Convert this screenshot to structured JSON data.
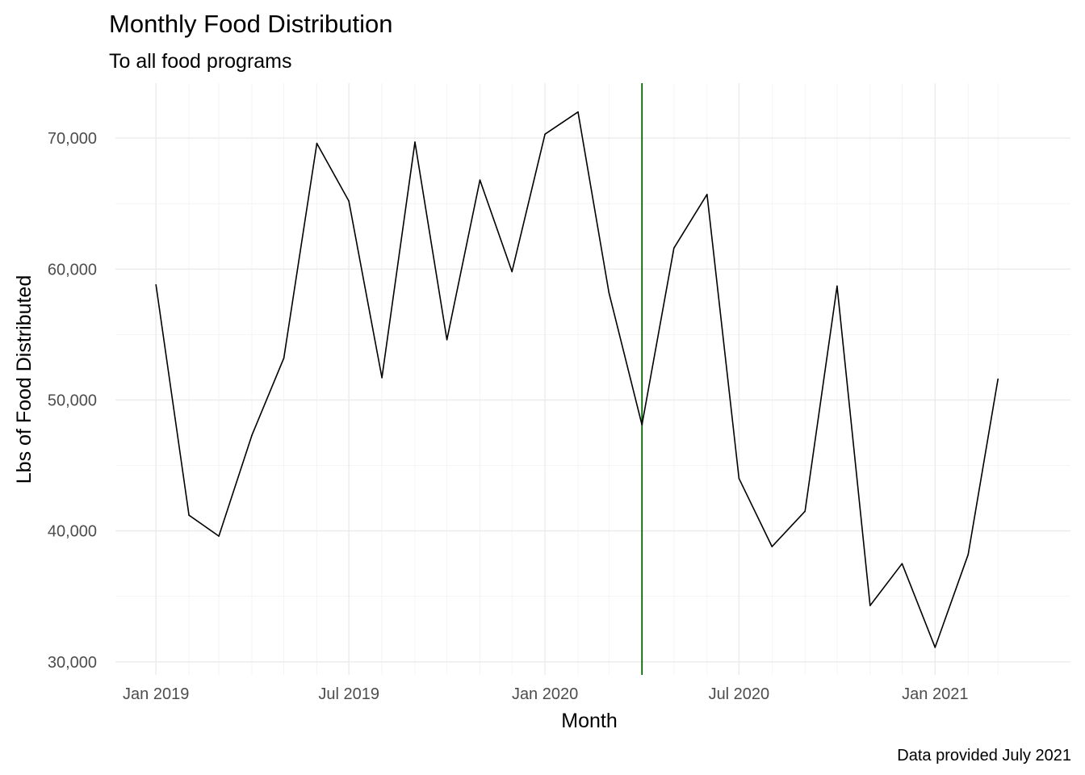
{
  "chart_data": {
    "type": "line",
    "title": "Monthly Food Distribution",
    "subtitle": "To all food programs",
    "xlabel": "Month",
    "ylabel": "Lbs of Food Distributed",
    "caption": "Data provided July 2021",
    "x": [
      "2019-01",
      "2019-02",
      "2019-03",
      "2019-04",
      "2019-05",
      "2019-06",
      "2019-07",
      "2019-08",
      "2019-09",
      "2019-10",
      "2019-11",
      "2019-12",
      "2020-01",
      "2020-02",
      "2020-03",
      "2020-04",
      "2020-05",
      "2020-06",
      "2020-07",
      "2020-08",
      "2020-09",
      "2020-10",
      "2020-11",
      "2020-12",
      "2021-01",
      "2021-02",
      "2021-03"
    ],
    "series": [
      {
        "values": [
          58800,
          41200,
          39600,
          47300,
          53200,
          69600,
          65200,
          51700,
          69700,
          54600,
          66800,
          59800,
          70300,
          72000,
          58200,
          48100,
          61600,
          65700,
          44000,
          38800,
          41500,
          58700,
          34300,
          37500,
          31100,
          38200,
          51600
        ]
      }
    ],
    "reference_line": {
      "x": "2020-04",
      "color": "#006400"
    },
    "ylim": [
      29000,
      74200
    ],
    "xlim": [
      "2018-11-24",
      "2021-05-08"
    ],
    "y_ticks": [
      {
        "value": 30000,
        "label": "30,000"
      },
      {
        "value": 40000,
        "label": "40,000"
      },
      {
        "value": 50000,
        "label": "50,000"
      },
      {
        "value": 60000,
        "label": "60,000"
      },
      {
        "value": 70000,
        "label": "70,000"
      }
    ],
    "x_ticks": [
      {
        "value": "2019-01-01",
        "label": "Jan 2019"
      },
      {
        "value": "2019-07-01",
        "label": "Jul 2019"
      },
      {
        "value": "2020-01-01",
        "label": "Jan 2020"
      },
      {
        "value": "2020-07-01",
        "label": "Jul 2020"
      },
      {
        "value": "2021-01-01",
        "label": "Jan 2021"
      }
    ],
    "grid": true,
    "legend": "none",
    "line_color": "#000000"
  }
}
